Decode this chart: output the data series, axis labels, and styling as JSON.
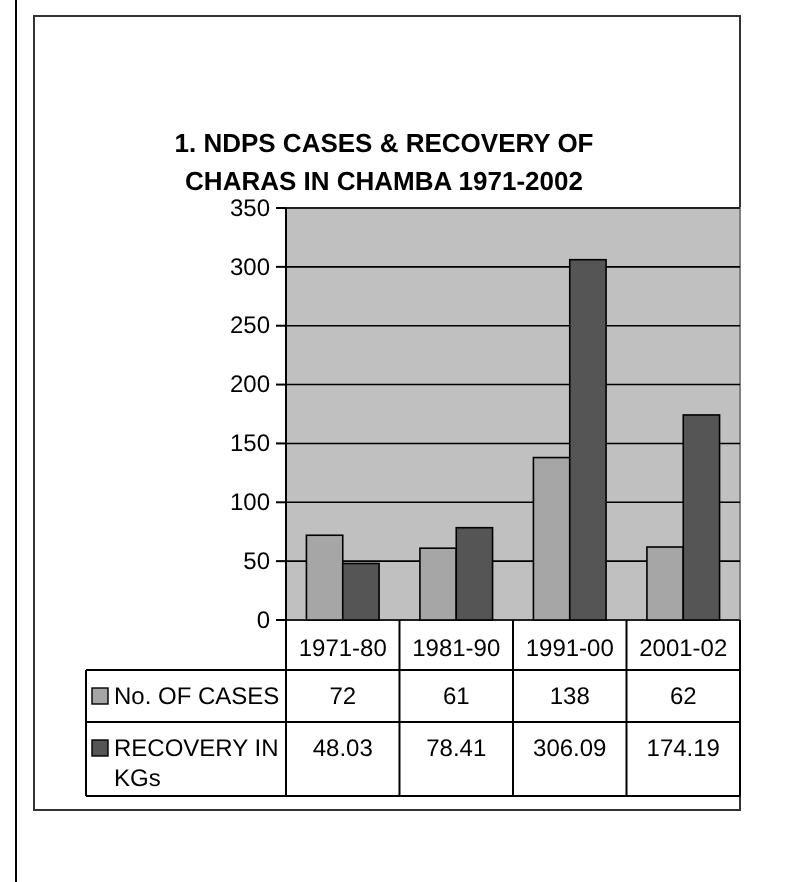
{
  "chart_data": {
    "type": "bar",
    "title": "1. NDPS CASES & RECOVERY OF CHARAS IN CHAMBA 1971-2002",
    "categories": [
      "1971-80",
      "1981-90",
      "1991-00",
      "2001-02"
    ],
    "series": [
      {
        "name": "No. OF CASES",
        "color": "#a6a6a6",
        "values": [
          72,
          61,
          138,
          62
        ]
      },
      {
        "name": "RECOVERY IN KGs",
        "color": "#555555",
        "values": [
          48.03,
          78.41,
          306.09,
          174.19
        ]
      }
    ],
    "ylim": [
      0,
      350
    ],
    "yticks": [
      0,
      50,
      100,
      150,
      200,
      250,
      300,
      350
    ],
    "grid": "y",
    "legend": "bottom",
    "data_labels": true
  }
}
